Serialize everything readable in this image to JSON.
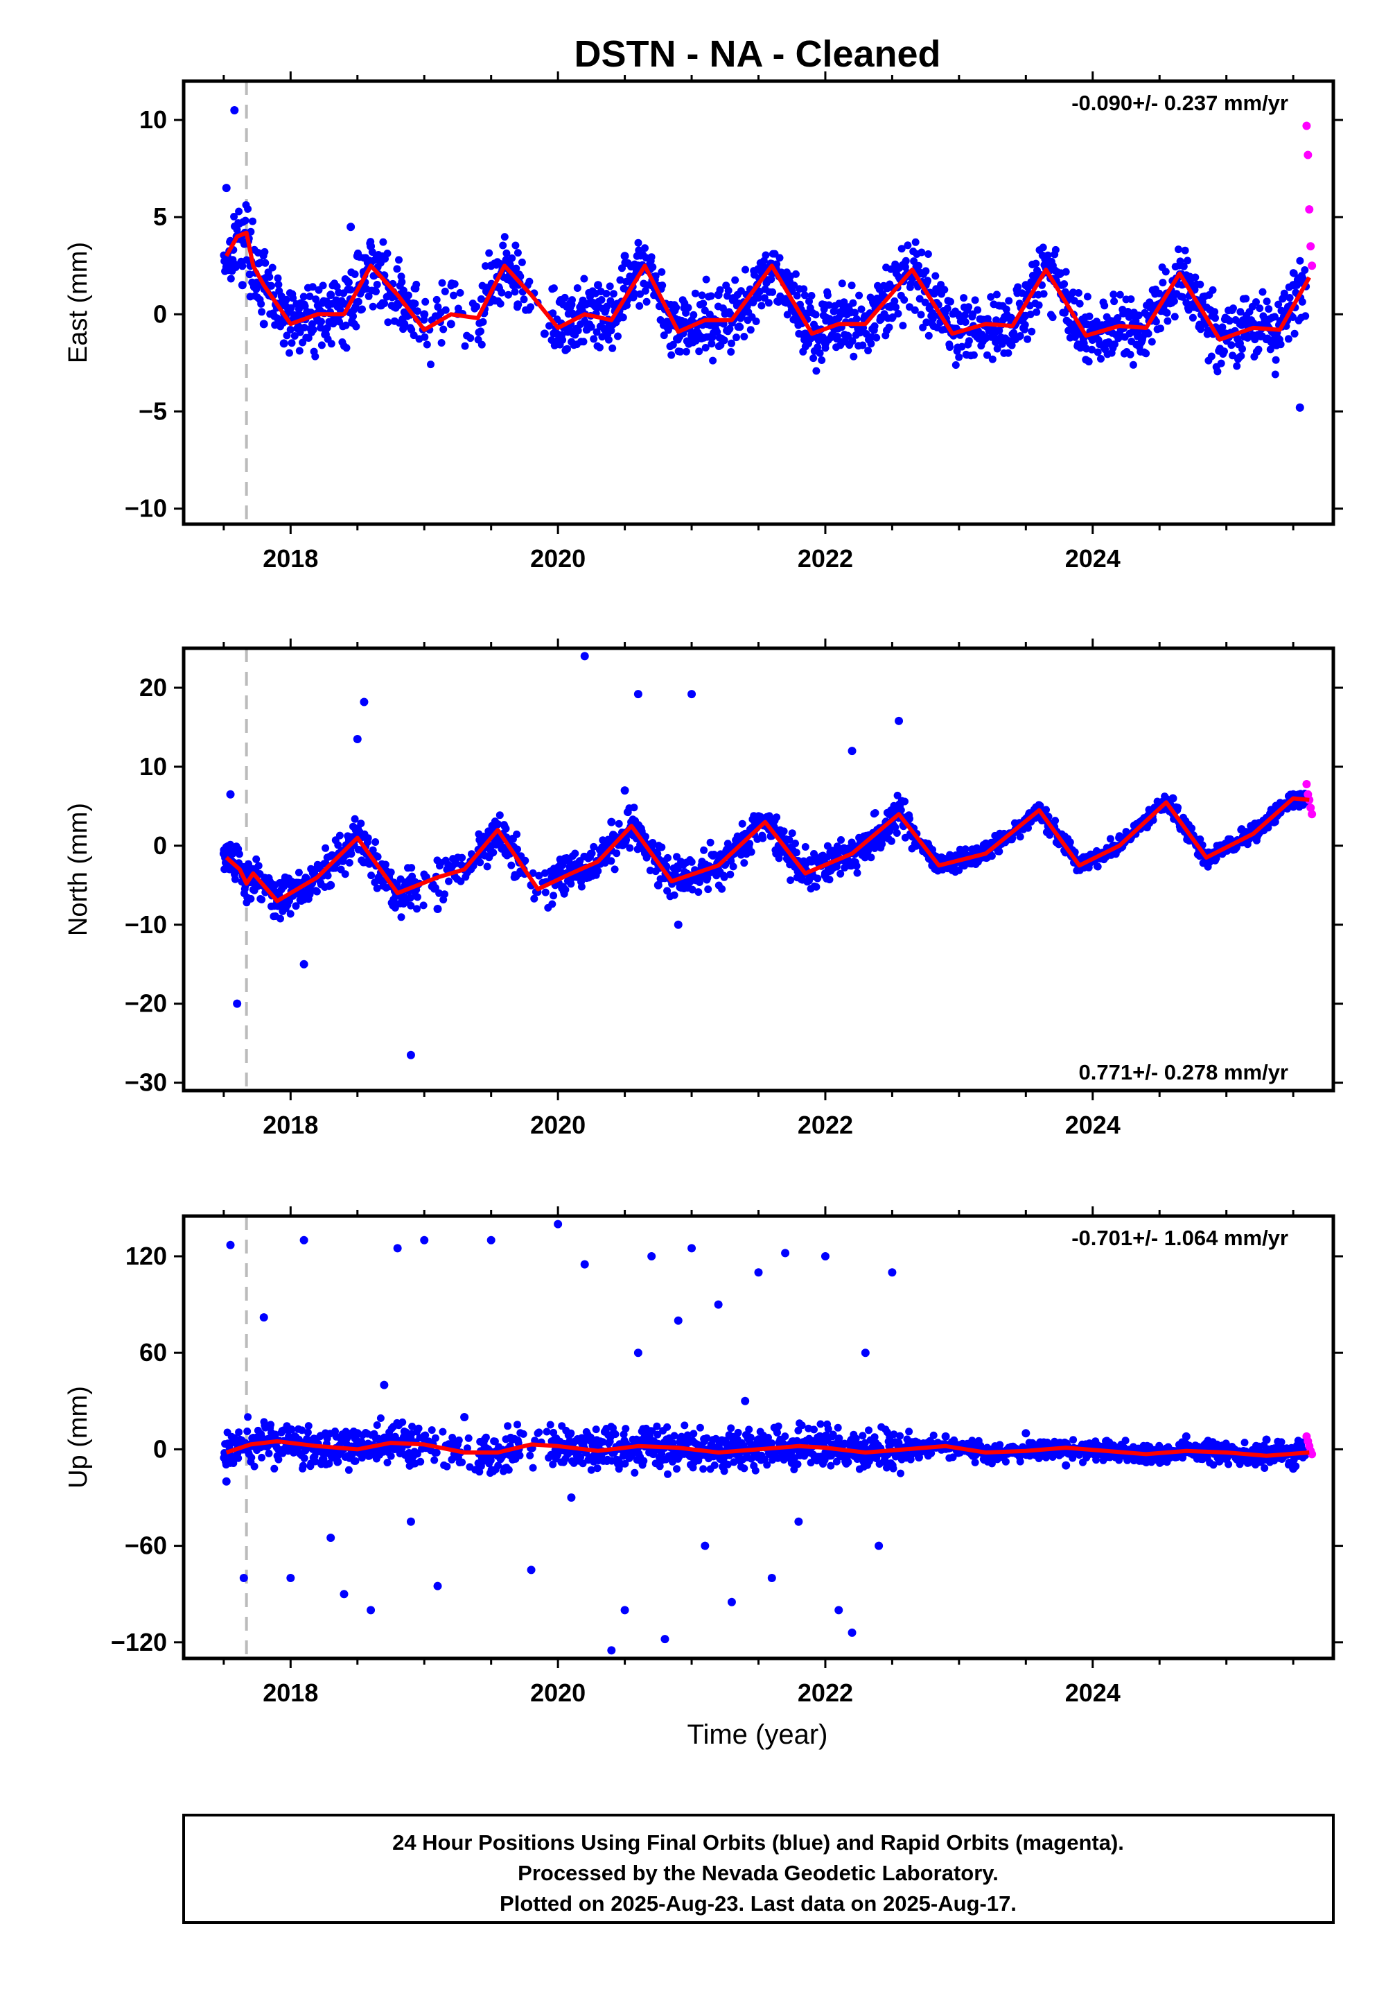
{
  "title": "DSTN  - NA - Cleaned",
  "xlabel": "Time (year)",
  "footer": {
    "line1": "24 Hour Positions Using Final Orbits (blue) and Rapid Orbits (magenta).",
    "line2": "Processed by the Nevada Geodetic Laboratory.",
    "line3": "Plotted on 2025-Aug-23. Last data on 2025-Aug-17."
  },
  "colors": {
    "final_orbits": "#0000ff",
    "rapid_orbits": "#ff00ff",
    "model_fit": "#ff0000",
    "equipment_change_line": "#bbbbbb",
    "frame": "#000000"
  },
  "chart_data": [
    {
      "type": "scatter",
      "component": "east",
      "ylabel": "East (mm)",
      "rate_label": "-0.090+/- 0.237 mm/yr",
      "rate_position": "top-right",
      "xlim": [
        2017.2,
        2025.8
      ],
      "ylim": [
        -10.8,
        12
      ],
      "yticks": [
        -10,
        -5,
        0,
        5,
        10
      ],
      "ytick_labels": [
        "−10",
        "−5",
        "0",
        "5",
        "10"
      ],
      "xticks": [
        2018,
        2020,
        2022,
        2024
      ],
      "xtick_labels": [
        "2018",
        "2020",
        "2022",
        "2024"
      ],
      "equipment_change_x": 2017.67,
      "grid": false,
      "series": [
        {
          "name": "Final Orbits",
          "role": "final",
          "color": "#0000ff",
          "x": [
            2017.52,
            2017.58,
            2017.64,
            2017.7,
            2017.8,
            2017.95,
            2018.1,
            2018.3,
            2018.45,
            2018.5,
            2018.55,
            2018.6,
            2018.7,
            2018.85,
            2019.0,
            2019.2,
            2019.5,
            2019.7,
            2019.9,
            2020.1,
            2020.3,
            2020.5,
            2020.6,
            2020.7,
            2020.9,
            2021.0,
            2021.2,
            2021.4,
            2021.6,
            2021.85,
            2022.0,
            2022.2,
            2022.4,
            2022.6,
            2022.75,
            2023.0,
            2023.2,
            2023.5,
            2023.7,
            2023.9,
            2024.1,
            2024.3,
            2024.55,
            2024.7,
            2024.9,
            2025.1,
            2025.3,
            2025.5,
            2025.55
          ],
          "y": [
            6.5,
            10.5,
            1.5,
            2.5,
            -0.5,
            -1.5,
            0.5,
            1.0,
            4.5,
            3.0,
            2.0,
            3.5,
            2.0,
            -0.5,
            0.0,
            -0.5,
            2.5,
            0.5,
            -1.0,
            0.5,
            1.5,
            3.0,
            2.5,
            1.5,
            -0.5,
            -0.5,
            1.0,
            0.5,
            2.5,
            -1.0,
            -1.5,
            -0.5,
            0.5,
            2.0,
            1.5,
            -1.0,
            -0.5,
            1.5,
            2.5,
            -1.0,
            -1.5,
            -0.5,
            1.0,
            2.0,
            -1.0,
            -1.5,
            -0.5,
            1.5,
            -4.8
          ]
        },
        {
          "name": "Rapid Orbits",
          "role": "rapid",
          "color": "#ff00ff",
          "x": [
            2025.6,
            2025.61,
            2025.62,
            2025.63,
            2025.64
          ],
          "y": [
            9.7,
            8.2,
            5.4,
            3.5,
            2.5
          ]
        },
        {
          "name": "Model Fit",
          "role": "fit",
          "color": "#ff0000",
          "x": [
            2017.52,
            2017.6,
            2017.67,
            2017.72,
            2017.8,
            2018.0,
            2018.2,
            2018.4,
            2018.6,
            2018.8,
            2019.0,
            2019.2,
            2019.4,
            2019.6,
            2019.8,
            2020.0,
            2020.2,
            2020.4,
            2020.65,
            2020.9,
            2021.1,
            2021.3,
            2021.6,
            2021.9,
            2022.1,
            2022.3,
            2022.65,
            2022.95,
            2023.2,
            2023.4,
            2023.65,
            2023.95,
            2024.2,
            2024.4,
            2024.65,
            2024.95,
            2025.2,
            2025.4,
            2025.62
          ],
          "y": [
            3.0,
            4.0,
            4.2,
            2.5,
            1.5,
            -0.5,
            0.0,
            0.0,
            2.5,
            1.0,
            -0.8,
            0.0,
            -0.2,
            2.5,
            1.0,
            -0.7,
            0.0,
            -0.3,
            2.5,
            -0.9,
            -0.3,
            -0.3,
            2.5,
            -1.0,
            -0.5,
            -0.5,
            2.3,
            -1.0,
            -0.5,
            -0.6,
            2.3,
            -1.1,
            -0.6,
            -0.7,
            2.1,
            -1.3,
            -0.7,
            -0.8,
            1.9
          ]
        }
      ]
    },
    {
      "type": "scatter",
      "component": "north",
      "ylabel": "North (mm)",
      "rate_label": "0.771+/- 0.278 mm/yr",
      "rate_position": "bottom-right",
      "xlim": [
        2017.2,
        2025.8
      ],
      "ylim": [
        -31,
        25
      ],
      "yticks": [
        -30,
        -20,
        -10,
        0,
        10,
        20
      ],
      "ytick_labels": [
        "−30",
        "−20",
        "−10",
        "0",
        "10",
        "20"
      ],
      "xticks": [
        2018,
        2020,
        2022,
        2024
      ],
      "xtick_labels": [
        "2018",
        "2020",
        "2022",
        "2024"
      ],
      "equipment_change_x": 2017.67,
      "grid": false,
      "series": [
        {
          "name": "Final Orbits",
          "role": "final",
          "color": "#0000ff",
          "x": [
            2017.5,
            2017.55,
            2017.6,
            2017.7,
            2017.9,
            2018.1,
            2018.3,
            2018.5,
            2018.55,
            2018.8,
            2018.9,
            2019.1,
            2019.3,
            2019.5,
            2019.8,
            2020.0,
            2020.2,
            2020.4,
            2020.5,
            2020.6,
            2020.75,
            2020.9,
            2021.0,
            2021.2,
            2021.4,
            2021.55,
            2021.75,
            2022.0,
            2022.2,
            2022.4,
            2022.55,
            2022.8,
            2023.0,
            2023.3,
            2023.6,
            2023.9,
            2024.1,
            2024.3,
            2024.6,
            2024.9,
            2025.1,
            2025.3,
            2025.5
          ],
          "y": [
            -1.0,
            6.5,
            -20.0,
            -4.0,
            -7.0,
            -15.0,
            -5.0,
            13.5,
            18.2,
            -6.0,
            -26.5,
            -8.0,
            -3.0,
            1.5,
            -5.0,
            -3.0,
            24.0,
            3.0,
            7.0,
            19.2,
            -5.0,
            -10.0,
            19.2,
            -2.0,
            1.0,
            3.5,
            -2.0,
            -3.5,
            12.0,
            1.0,
            15.8,
            -2.5,
            -2.0,
            0.5,
            5.0,
            -2.5,
            -1.0,
            1.5,
            6.0,
            -1.5,
            0.5,
            2.5,
            6.5
          ]
        },
        {
          "name": "Rapid Orbits",
          "role": "rapid",
          "color": "#ff00ff",
          "x": [
            2025.6,
            2025.61,
            2025.62,
            2025.63,
            2025.64
          ],
          "y": [
            7.8,
            6.5,
            5.8,
            4.8,
            4.0
          ]
        },
        {
          "name": "Model Fit",
          "role": "fit",
          "color": "#ff0000",
          "x": [
            2017.52,
            2017.62,
            2017.67,
            2017.72,
            2017.9,
            2018.2,
            2018.5,
            2018.8,
            2019.1,
            2019.3,
            2019.55,
            2019.85,
            2020.1,
            2020.3,
            2020.55,
            2020.85,
            2021.2,
            2021.55,
            2021.85,
            2022.2,
            2022.55,
            2022.85,
            2023.2,
            2023.6,
            2023.9,
            2024.2,
            2024.55,
            2024.85,
            2025.2,
            2025.5,
            2025.62
          ],
          "y": [
            -1.5,
            -3.0,
            -4.8,
            -3.5,
            -7.0,
            -4.0,
            1.0,
            -6.0,
            -4.0,
            -3.0,
            2.0,
            -5.5,
            -3.5,
            -2.0,
            2.5,
            -4.5,
            -2.5,
            3.0,
            -3.5,
            -1.0,
            4.0,
            -2.5,
            -1.0,
            4.5,
            -2.5,
            0.0,
            5.5,
            -1.5,
            1.5,
            6.0,
            5.8
          ]
        }
      ]
    },
    {
      "type": "scatter",
      "component": "up",
      "ylabel": "Up (mm)",
      "rate_label": "-0.701+/- 1.064 mm/yr",
      "rate_position": "top-right",
      "xlim": [
        2017.2,
        2025.8
      ],
      "ylim": [
        -130,
        145
      ],
      "yticks": [
        -120,
        -60,
        0,
        60,
        120
      ],
      "ytick_labels": [
        "−120",
        "−60",
        "0",
        "60",
        "120"
      ],
      "xticks": [
        2018,
        2020,
        2022,
        2024
      ],
      "xtick_labels": [
        "2018",
        "2020",
        "2022",
        "2024"
      ],
      "equipment_change_x": 2017.67,
      "grid": false,
      "series": [
        {
          "name": "Final Orbits",
          "role": "final",
          "color": "#0000ff",
          "x": [
            2017.52,
            2017.55,
            2017.65,
            2017.8,
            2018.0,
            2018.1,
            2018.3,
            2018.4,
            2018.5,
            2018.6,
            2018.7,
            2018.8,
            2018.9,
            2019.0,
            2019.1,
            2019.3,
            2019.5,
            2019.7,
            2019.8,
            2020.0,
            2020.1,
            2020.2,
            2020.4,
            2020.5,
            2020.6,
            2020.7,
            2020.8,
            2020.9,
            2021.0,
            2021.1,
            2021.2,
            2021.3,
            2021.4,
            2021.5,
            2021.6,
            2021.7,
            2021.8,
            2022.0,
            2022.1,
            2022.2,
            2022.3,
            2022.4,
            2022.5,
            2022.7,
            2022.9,
            2023.2,
            2023.5,
            2023.8,
            2024.1,
            2024.4,
            2024.7,
            2025.0,
            2025.3,
            2025.5
          ],
          "y": [
            -20,
            127,
            -80,
            82,
            -80,
            130,
            -55,
            -90,
            10,
            -100,
            40,
            125,
            -45,
            130,
            -85,
            20,
            130,
            0,
            -75,
            140,
            -30,
            115,
            -125,
            -100,
            60,
            120,
            -118,
            80,
            125,
            -60,
            90,
            -95,
            30,
            110,
            -80,
            122,
            -45,
            120,
            -100,
            -114,
            60,
            -60,
            110,
            -5,
            8,
            -5,
            10,
            -10,
            5,
            -8,
            8,
            -6,
            6,
            -12
          ]
        },
        {
          "name": "Rapid Orbits",
          "role": "rapid",
          "color": "#ff00ff",
          "x": [
            2025.6,
            2025.61,
            2025.62,
            2025.63,
            2025.64
          ],
          "y": [
            8,
            5,
            2,
            -1,
            -3
          ]
        },
        {
          "name": "Model Fit",
          "role": "fit",
          "color": "#ff0000",
          "x": [
            2017.52,
            2017.7,
            2017.9,
            2018.2,
            2018.5,
            2018.75,
            2019.0,
            2019.3,
            2019.55,
            2019.8,
            2020.0,
            2020.3,
            2020.6,
            2020.9,
            2021.2,
            2021.5,
            2021.8,
            2022.0,
            2022.3,
            2022.6,
            2022.9,
            2023.2,
            2023.5,
            2023.8,
            2024.1,
            2024.4,
            2024.7,
            2025.0,
            2025.3,
            2025.62
          ],
          "y": [
            -2,
            3,
            5,
            2,
            0,
            4,
            3,
            -2,
            -2,
            3,
            2,
            -1,
            2,
            1,
            -2,
            0,
            2,
            1,
            -2,
            0,
            2,
            -2,
            -1,
            1,
            -1,
            -3,
            -1,
            -2,
            -4,
            -2
          ]
        }
      ]
    }
  ]
}
